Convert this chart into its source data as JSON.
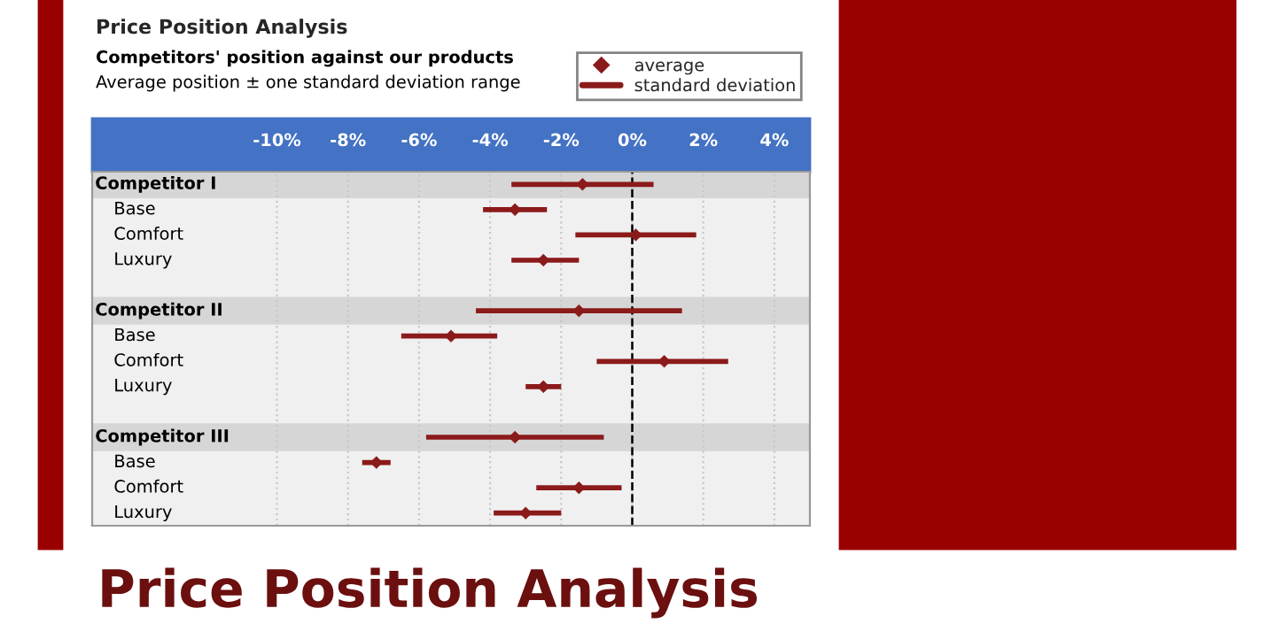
{
  "chart_data": {
    "type": "scatter",
    "orientation": "horizontal",
    "title": "Price Position Analysis",
    "annotations": [
      "Competitors' position against our products",
      "Average position ± one standard deviation range",
      "Price Position Analysis"
    ],
    "categories": [
      "Competitor I",
      "Base",
      "Comfort",
      "Luxury",
      null,
      "Competitor II",
      "Base",
      "Comfort",
      "Luxury",
      null,
      "Competitor III",
      "Base",
      "Comfort",
      "Luxury"
    ],
    "series": [
      {
        "name": "standard deviation",
        "type": "bar",
        "color": "#8b1a1a",
        "base": [
          -3.4,
          -4.2,
          -1.6,
          -3.4,
          null,
          -4.4,
          -6.5,
          -1.0,
          -3.0,
          null,
          -5.8,
          -7.6,
          -2.7,
          -3.9
        ],
        "values": [
          4.0,
          1.8,
          3.4,
          1.9,
          null,
          5.8,
          2.7,
          3.7,
          1.0,
          null,
          5.0,
          0.8,
          2.4,
          1.9
        ]
      },
      {
        "name": "average",
        "color": "#8b1a1a",
        "marker": "diamond",
        "values": [
          -1.4,
          -3.3,
          0.1,
          -2.5,
          null,
          -1.5,
          -5.1,
          0.9,
          -2.5,
          null,
          -3.3,
          -7.2,
          -1.5,
          -3.0
        ]
      }
    ],
    "xlim": [
      -15.2,
      5
    ],
    "xticks": [
      {
        "value": -10,
        "label": "-10%"
      },
      {
        "value": -8,
        "label": "-8%"
      },
      {
        "value": -6,
        "label": "-6%"
      },
      {
        "value": -4,
        "label": "-4%"
      },
      {
        "value": -2,
        "label": "-2%"
      },
      {
        "value": 0,
        "label": "0%"
      },
      {
        "value": 2,
        "label": "2%"
      },
      {
        "value": 4,
        "label": "4%"
      }
    ],
    "ref_lines": [
      {
        "axis": "x",
        "value": 0,
        "color": "#000000",
        "line_style": "dashed"
      }
    ],
    "grid": "x",
    "legend": "top right"
  }
}
